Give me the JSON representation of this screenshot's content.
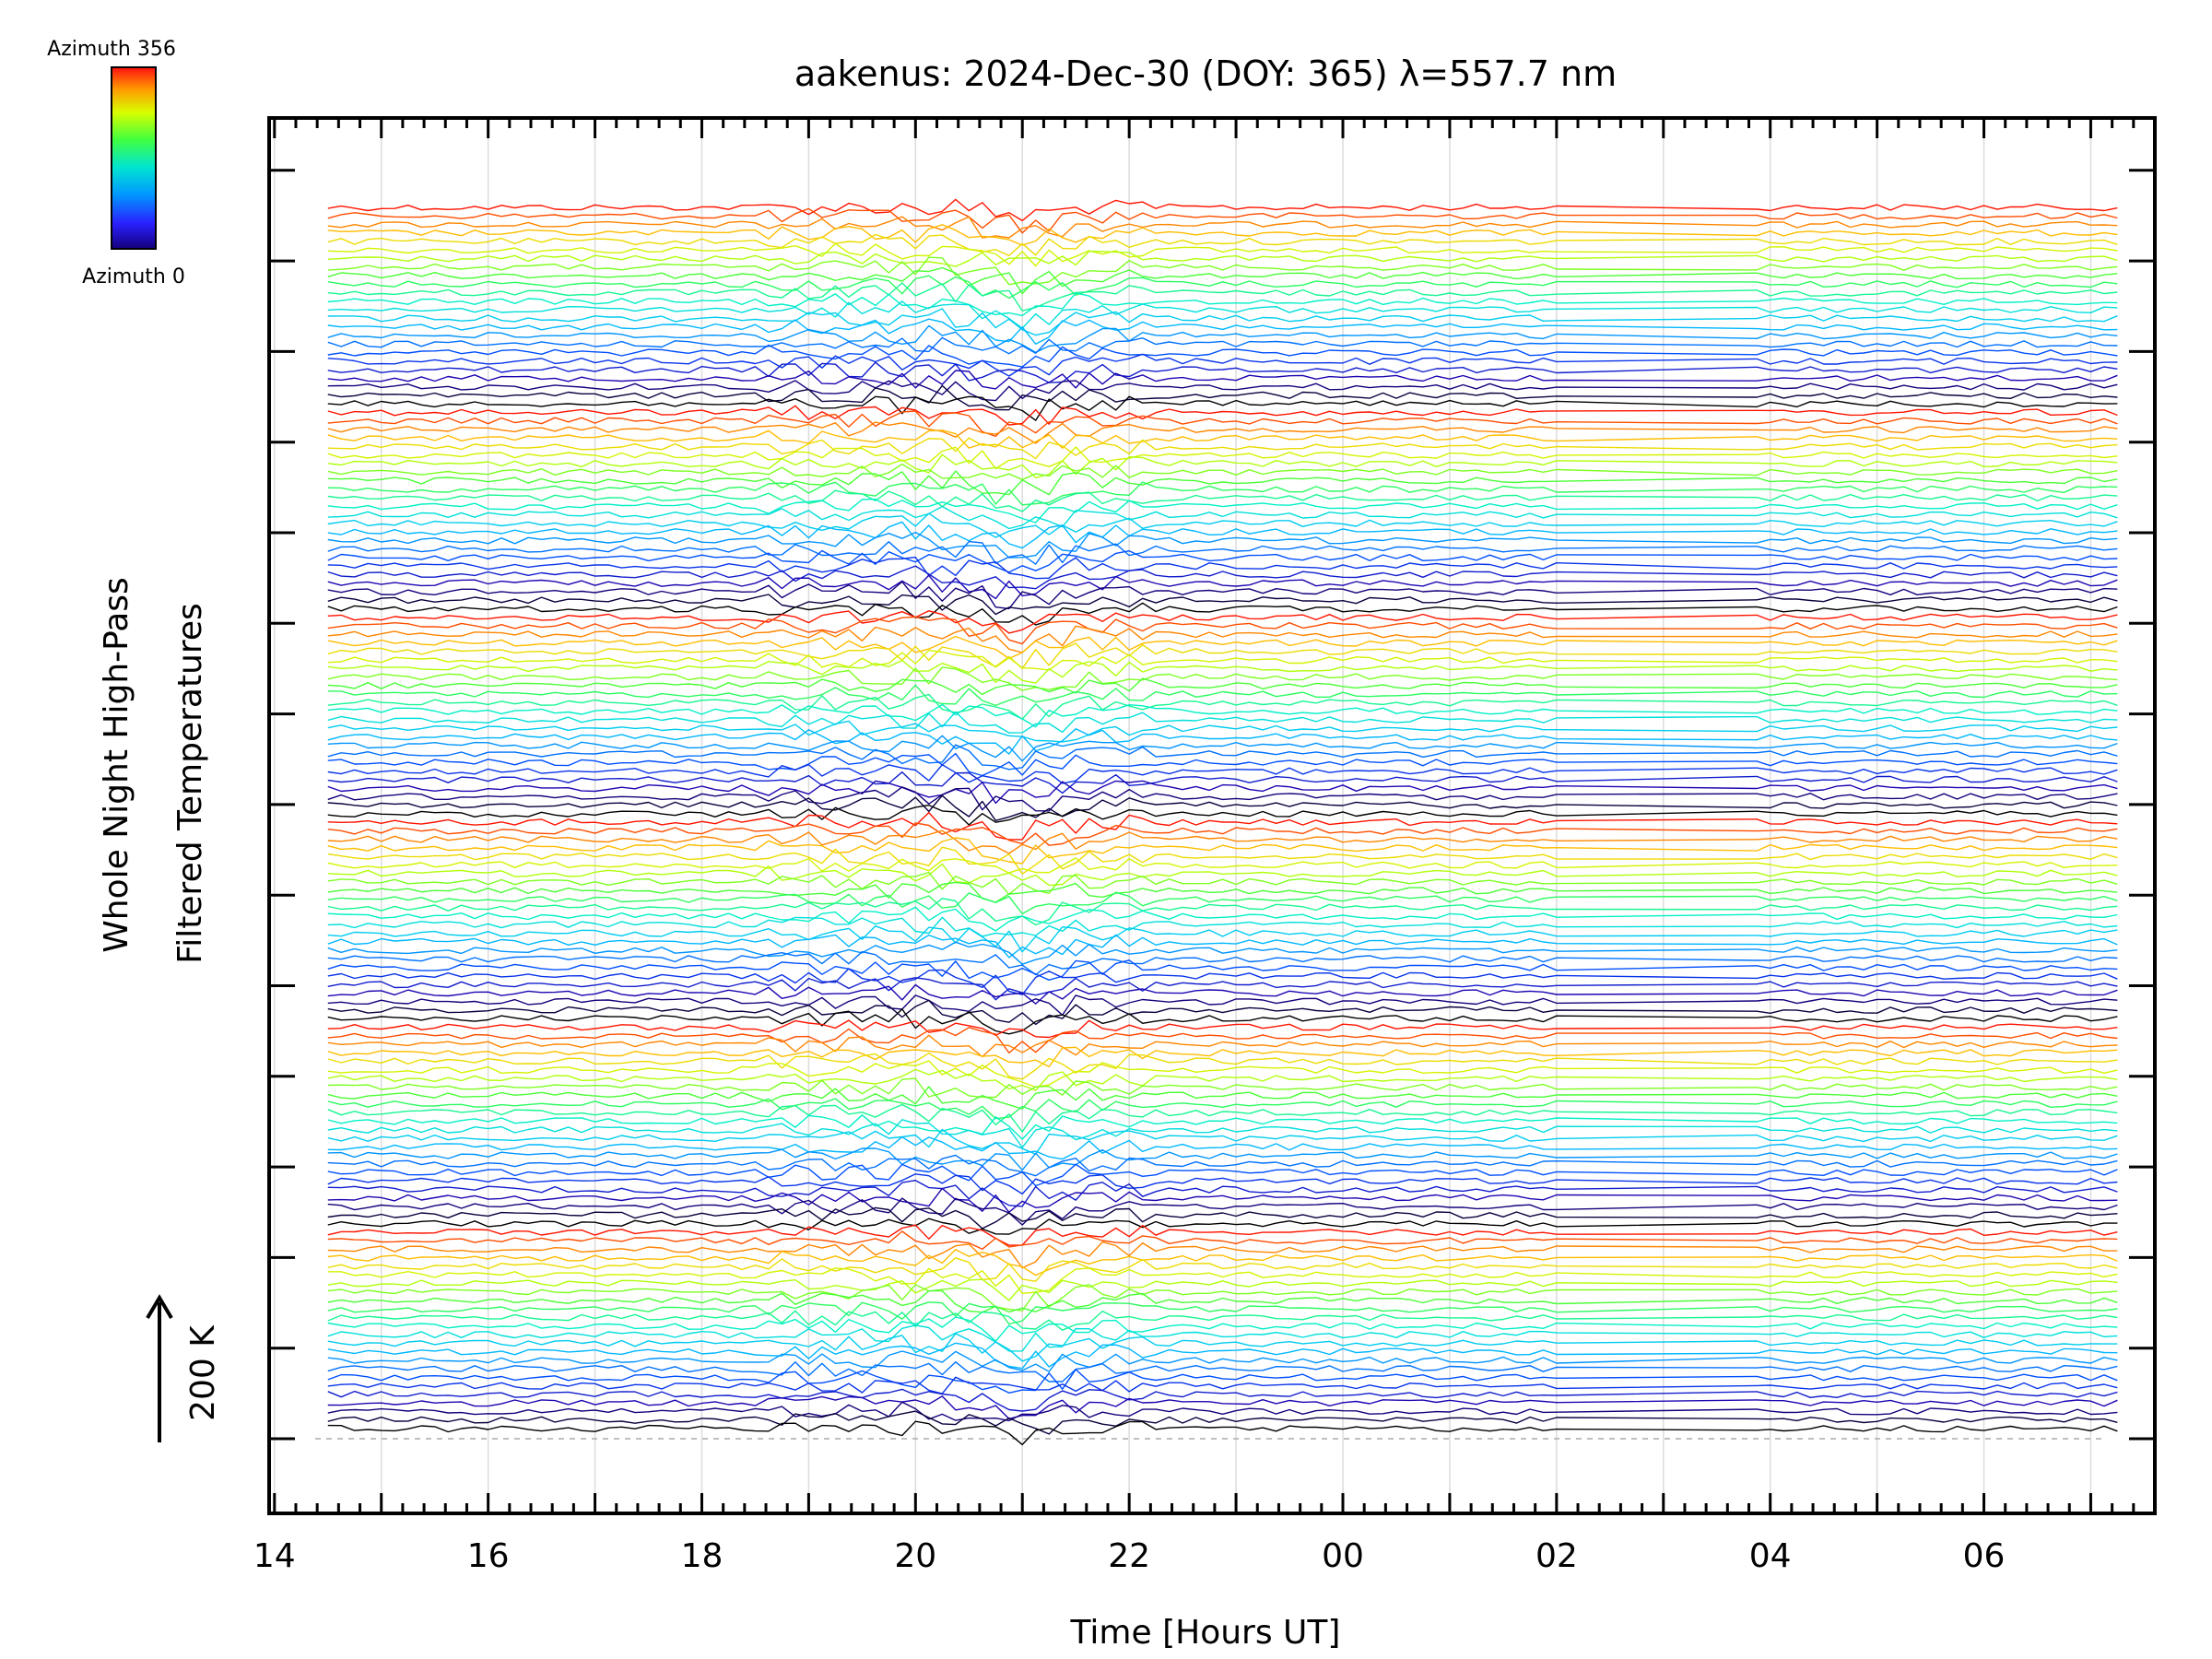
{
  "chart_data": {
    "type": "line",
    "title": "aakenus: 2024-Dec-30 (DOY: 365) λ=557.7 nm",
    "xlabel": "Time [Hours UT]",
    "ylabel_line1": "Whole Night High-Pass",
    "ylabel_line2": "Filtered Temperatures",
    "scale_label": "200 K",
    "colorbar": {
      "label_top": "Azimuth 356",
      "label_bottom": "Azimuth 0",
      "colormap": [
        "#000000",
        "#2200aa",
        "#0044ff",
        "#00bbff",
        "#00ffcc",
        "#44ff44",
        "#ccff00",
        "#ffcc00",
        "#ff6600",
        "#ff0000"
      ]
    },
    "x_tick_labels": [
      "14",
      "16",
      "18",
      "20",
      "22",
      "00",
      "02",
      "04",
      "06"
    ],
    "x_tick_hours": [
      14,
      16,
      18,
      20,
      22,
      24,
      26,
      28,
      30
    ],
    "xlim": [
      13.95,
      31.6
    ],
    "time_start": 14.5,
    "time_end": 31.25,
    "n_traces": 144,
    "grid": true,
    "legend": "colorbar top-left"
  }
}
